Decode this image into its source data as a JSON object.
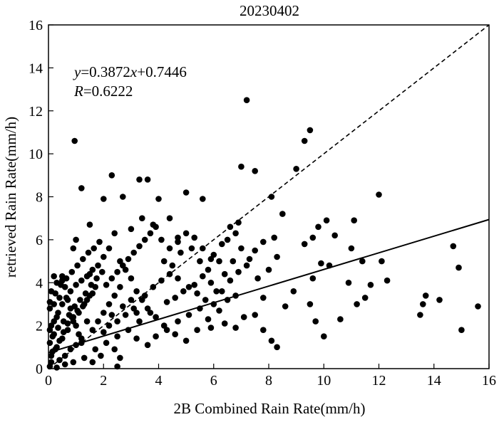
{
  "chart_data": {
    "type": "scatter",
    "title": "20230402",
    "xlabel": "2B Combined Rain Rate(mm/h)",
    "ylabel": "retrieved Rain Rate(mm/h)",
    "xlim": [
      0,
      16
    ],
    "ylim": [
      0,
      16
    ],
    "xticks": [
      0,
      2,
      4,
      6,
      8,
      10,
      12,
      14,
      16
    ],
    "yticks": [
      0,
      2,
      4,
      6,
      8,
      10,
      12,
      14,
      16
    ],
    "grid": false,
    "legend": "none",
    "annotation": {
      "equation": {
        "y": "y",
        "eq": "=0.3872",
        "x": "x",
        "rest": "+0.7446"
      },
      "corr": {
        "r": "R",
        "rest": "=0.6222"
      }
    },
    "fit_line": {
      "slope": 0.3872,
      "intercept": 0.7446,
      "style": "solid"
    },
    "reference_line": {
      "slope": 1,
      "intercept": 0,
      "style": "dashed"
    },
    "marker_color": "#000000",
    "series": [
      {
        "points": [
          [
            0.05,
            0.1
          ],
          [
            0.1,
            0.3
          ],
          [
            0.15,
            0.8
          ],
          [
            0.05,
            1.2
          ],
          [
            0.2,
            1.6
          ],
          [
            0.1,
            2.0
          ],
          [
            0.3,
            2.4
          ],
          [
            0.05,
            2.8
          ],
          [
            0.2,
            3.0
          ],
          [
            0.4,
            3.3
          ],
          [
            0.1,
            3.6
          ],
          [
            0.3,
            4.0
          ],
          [
            0.5,
            4.3
          ],
          [
            0.6,
            3.8
          ],
          [
            0.7,
            3.2
          ],
          [
            0.8,
            2.8
          ],
          [
            0.9,
            2.4
          ],
          [
            1.0,
            2.0
          ],
          [
            1.1,
            1.6
          ],
          [
            1.2,
            1.2
          ],
          [
            0.4,
            0.4
          ],
          [
            0.6,
            0.6
          ],
          [
            0.8,
            0.9
          ],
          [
            1.0,
            1.1
          ],
          [
            1.2,
            1.4
          ],
          [
            0.3,
            1.0
          ],
          [
            0.5,
            1.4
          ],
          [
            0.7,
            1.8
          ],
          [
            0.9,
            2.2
          ],
          [
            1.1,
            2.6
          ],
          [
            1.3,
            3.0
          ],
          [
            1.5,
            3.4
          ],
          [
            1.7,
            3.8
          ],
          [
            1.4,
            2.2
          ],
          [
            1.6,
            1.8
          ],
          [
            1.8,
            2.2
          ],
          [
            2.0,
            2.6
          ],
          [
            2.2,
            3.0
          ],
          [
            2.4,
            3.4
          ],
          [
            2.6,
            3.8
          ],
          [
            1.5,
            4.4
          ],
          [
            1.8,
            4.8
          ],
          [
            2.0,
            5.2
          ],
          [
            2.2,
            5.6
          ],
          [
            2.4,
            6.3
          ],
          [
            2.6,
            5.0
          ],
          [
            2.8,
            4.6
          ],
          [
            3.0,
            4.2
          ],
          [
            3.2,
            3.6
          ],
          [
            3.4,
            3.2
          ],
          [
            0.2,
            4.3
          ],
          [
            0.5,
            4.1
          ],
          [
            0.9,
            5.6
          ],
          [
            1.0,
            6.0
          ],
          [
            1.5,
            6.7
          ],
          [
            2.0,
            7.9
          ],
          [
            2.3,
            9.0
          ],
          [
            2.7,
            8.0
          ],
          [
            1.2,
            8.4
          ],
          [
            0.95,
            10.6
          ],
          [
            3.3,
            8.8
          ],
          [
            3.6,
            8.8
          ],
          [
            3.0,
            6.5
          ],
          [
            3.4,
            7.0
          ],
          [
            3.8,
            6.7
          ],
          [
            4.0,
            7.9
          ],
          [
            4.4,
            7.0
          ],
          [
            4.7,
            6.1
          ],
          [
            5.0,
            8.2
          ],
          [
            5.6,
            7.9
          ],
          [
            4.2,
            5.0
          ],
          [
            4.5,
            4.8
          ],
          [
            4.8,
            5.4
          ],
          [
            5.2,
            5.6
          ],
          [
            5.5,
            5.0
          ],
          [
            5.8,
            4.6
          ],
          [
            6.0,
            5.3
          ],
          [
            6.3,
            5.8
          ],
          [
            6.6,
            6.6
          ],
          [
            6.9,
            6.8
          ],
          [
            3.6,
            2.8
          ],
          [
            3.9,
            2.4
          ],
          [
            4.2,
            2.0
          ],
          [
            4.6,
            1.6
          ],
          [
            5.0,
            1.3
          ],
          [
            5.4,
            1.8
          ],
          [
            5.8,
            2.3
          ],
          [
            6.2,
            2.7
          ],
          [
            6.5,
            3.2
          ],
          [
            6.8,
            3.4
          ],
          [
            7.2,
            12.5
          ],
          [
            7.0,
            9.4
          ],
          [
            7.5,
            9.2
          ],
          [
            8.1,
            8.0
          ],
          [
            8.5,
            7.2
          ],
          [
            9.0,
            9.3
          ],
          [
            9.3,
            10.6
          ],
          [
            9.5,
            11.1
          ],
          [
            8.0,
            4.6
          ],
          [
            8.3,
            5.2
          ],
          [
            7.1,
            2.4
          ],
          [
            7.5,
            2.5
          ],
          [
            7.8,
            1.8
          ],
          [
            8.3,
            1.0
          ],
          [
            8.1,
            1.3
          ],
          [
            8.6,
            2.9
          ],
          [
            8.9,
            3.6
          ],
          [
            7.8,
            3.3
          ],
          [
            7.6,
            4.2
          ],
          [
            7.3,
            5.1
          ],
          [
            9.3,
            5.8
          ],
          [
            9.6,
            6.1
          ],
          [
            9.8,
            6.6
          ],
          [
            10.1,
            6.9
          ],
          [
            9.6,
            4.2
          ],
          [
            9.9,
            4.9
          ],
          [
            10.2,
            4.8
          ],
          [
            9.5,
            3.0
          ],
          [
            9.7,
            2.2
          ],
          [
            10.0,
            1.5
          ],
          [
            10.6,
            2.3
          ],
          [
            10.9,
            4.0
          ],
          [
            11.0,
            5.6
          ],
          [
            11.1,
            6.9
          ],
          [
            11.4,
            5.0
          ],
          [
            11.7,
            3.9
          ],
          [
            12.0,
            8.1
          ],
          [
            12.1,
            5.0
          ],
          [
            12.3,
            4.1
          ],
          [
            11.5,
            3.3
          ],
          [
            13.5,
            2.5
          ],
          [
            13.7,
            3.4
          ],
          [
            14.2,
            3.2
          ],
          [
            14.7,
            5.7
          ],
          [
            14.9,
            4.7
          ],
          [
            15.0,
            1.8
          ],
          [
            15.6,
            2.9
          ],
          [
            13.6,
            3.0
          ],
          [
            11.2,
            3.0
          ],
          [
            10.4,
            6.2
          ],
          [
            0.3,
            0.05
          ],
          [
            0.6,
            0.2
          ],
          [
            0.9,
            0.3
          ],
          [
            1.3,
            0.5
          ],
          [
            1.7,
            0.9
          ],
          [
            2.1,
            1.2
          ],
          [
            2.5,
            1.5
          ],
          [
            2.9,
            1.8
          ],
          [
            3.3,
            2.2
          ],
          [
            3.7,
            2.6
          ],
          [
            0.15,
            1.5
          ],
          [
            0.35,
            1.9
          ],
          [
            0.55,
            2.2
          ],
          [
            0.75,
            2.5
          ],
          [
            0.95,
            2.9
          ],
          [
            1.15,
            3.2
          ],
          [
            1.35,
            3.5
          ],
          [
            1.55,
            3.9
          ],
          [
            1.75,
            4.2
          ],
          [
            1.95,
            4.5
          ],
          [
            0.05,
            3.1
          ],
          [
            0.25,
            3.5
          ],
          [
            0.45,
            3.9
          ],
          [
            0.65,
            4.2
          ],
          [
            0.85,
            4.5
          ],
          [
            1.05,
            4.8
          ],
          [
            1.25,
            5.1
          ],
          [
            1.45,
            5.4
          ],
          [
            1.65,
            5.6
          ],
          [
            1.85,
            5.9
          ],
          [
            2.1,
            3.9
          ],
          [
            2.3,
            4.2
          ],
          [
            2.5,
            4.5
          ],
          [
            2.7,
            4.8
          ],
          [
            2.9,
            5.1
          ],
          [
            3.1,
            5.4
          ],
          [
            3.3,
            5.7
          ],
          [
            3.5,
            6.0
          ],
          [
            3.7,
            6.3
          ],
          [
            3.9,
            6.6
          ],
          [
            2.2,
            2.0
          ],
          [
            2.5,
            2.2
          ],
          [
            2.8,
            2.5
          ],
          [
            3.1,
            2.8
          ],
          [
            3.5,
            3.4
          ],
          [
            3.8,
            3.8
          ],
          [
            4.1,
            4.1
          ],
          [
            4.4,
            4.4
          ],
          [
            4.7,
            4.2
          ],
          [
            5.1,
            3.8
          ],
          [
            5.4,
            3.5
          ],
          [
            5.7,
            3.2
          ],
          [
            6.0,
            3.0
          ],
          [
            6.3,
            3.6
          ],
          [
            6.6,
            4.1
          ],
          [
            6.9,
            4.5
          ],
          [
            7.2,
            4.8
          ],
          [
            7.5,
            5.5
          ],
          [
            7.8,
            5.9
          ],
          [
            8.2,
            6.1
          ],
          [
            0.1,
            0.6
          ],
          [
            0.25,
            0.9
          ],
          [
            0.4,
            1.3
          ],
          [
            0.55,
            1.7
          ],
          [
            0.7,
            2.1
          ],
          [
            0.85,
            2.4
          ],
          [
            1.05,
            2.7
          ],
          [
            1.25,
            2.9
          ],
          [
            1.4,
            3.2
          ],
          [
            1.6,
            3.5
          ],
          [
            0.05,
            1.8
          ],
          [
            0.2,
            2.2
          ],
          [
            0.35,
            2.6
          ],
          [
            0.5,
            3.0
          ],
          [
            0.65,
            3.3
          ],
          [
            0.8,
            3.6
          ],
          [
            1.0,
            3.9
          ],
          [
            1.2,
            4.1
          ],
          [
            1.4,
            4.3
          ],
          [
            1.6,
            4.6
          ],
          [
            2.4,
            0.9
          ],
          [
            2.6,
            0.5
          ],
          [
            2.5,
            0.1
          ],
          [
            1.6,
            0.3
          ],
          [
            1.9,
            0.6
          ],
          [
            2.0,
            1.7
          ],
          [
            2.3,
            2.5
          ],
          [
            2.7,
            2.9
          ],
          [
            3.0,
            3.2
          ],
          [
            3.2,
            2.6
          ],
          [
            4.3,
            3.1
          ],
          [
            4.6,
            3.3
          ],
          [
            4.9,
            3.6
          ],
          [
            5.3,
            3.9
          ],
          [
            5.6,
            4.3
          ],
          [
            5.9,
            4.0
          ],
          [
            6.1,
            3.6
          ],
          [
            6.4,
            4.4
          ],
          [
            6.7,
            5.0
          ],
          [
            7.0,
            5.6
          ],
          [
            3.2,
            1.4
          ],
          [
            3.6,
            1.1
          ],
          [
            3.9,
            1.5
          ],
          [
            4.3,
            1.8
          ],
          [
            4.7,
            2.2
          ],
          [
            5.1,
            2.5
          ],
          [
            5.5,
            2.8
          ],
          [
            5.9,
            1.9
          ],
          [
            6.4,
            2.1
          ],
          [
            6.8,
            1.9
          ],
          [
            4.1,
            6.0
          ],
          [
            4.4,
            5.6
          ],
          [
            4.7,
            5.9
          ],
          [
            5.0,
            6.3
          ],
          [
            5.3,
            6.1
          ],
          [
            5.6,
            5.6
          ],
          [
            5.9,
            5.1
          ],
          [
            6.2,
            5.0
          ],
          [
            6.5,
            6.0
          ],
          [
            6.8,
            6.3
          ]
        ]
      }
    ]
  }
}
